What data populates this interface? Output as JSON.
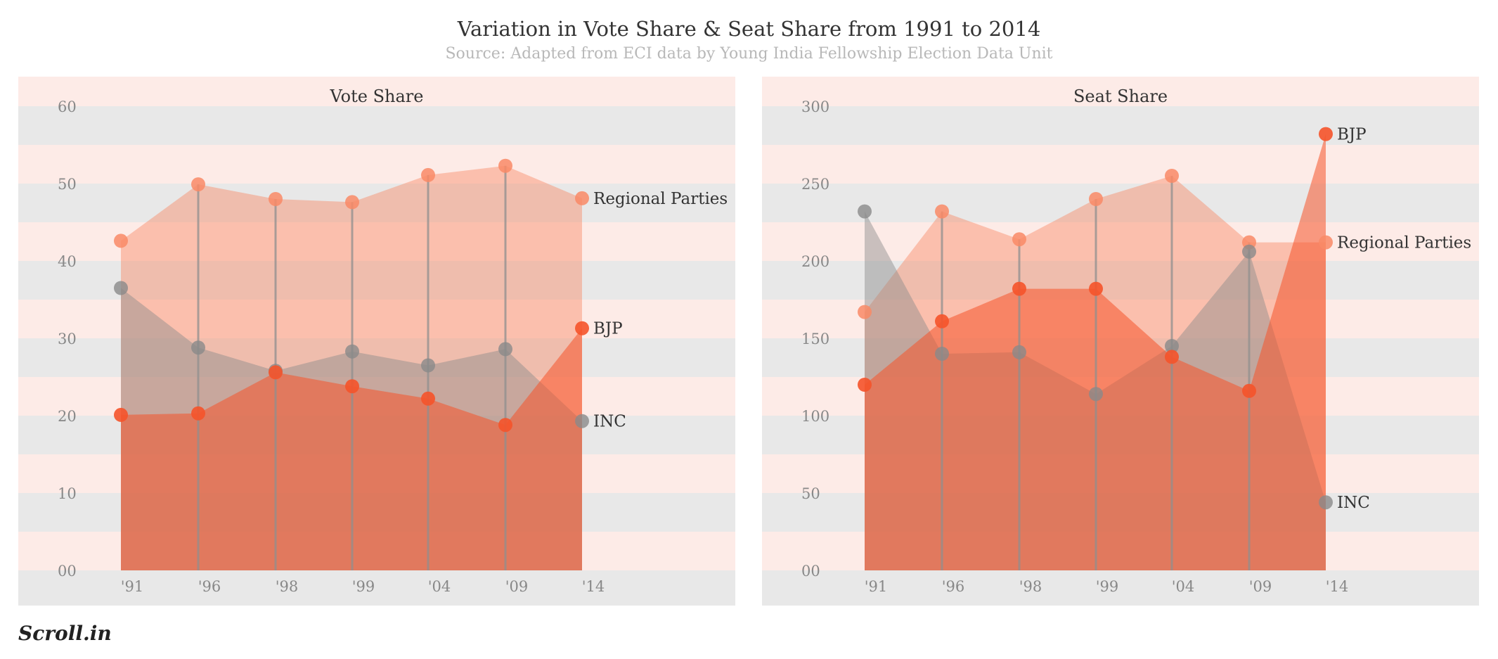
{
  "title": "Variation in Vote Share & Seat Share from 1991 to 2014",
  "subtitle": "Source: Adapted from ECI data by Young India Fellowship Election Data Unit",
  "logo": "Scroll.in",
  "colors": {
    "band_pink": "#fdebe7",
    "band_gray": "#e8e8e8",
    "inc": "#8a8a8a",
    "bjp": "#f5532a",
    "regional": "#f98a66",
    "stem": "#8f8f8f"
  },
  "chart_data": [
    {
      "type": "area",
      "title": "Vote Share",
      "categories": [
        "'91",
        "'96",
        "'98",
        "'99",
        "'04",
        "'09",
        "'14"
      ],
      "yticks": [
        "00",
        "10",
        "20",
        "30",
        "40",
        "50",
        "60"
      ],
      "ylim": [
        0,
        60
      ],
      "grid": "alternating bands",
      "series": [
        {
          "name": "Regional Parties",
          "values": [
            42.6,
            49.9,
            48.0,
            47.6,
            51.1,
            52.3,
            48.1
          ]
        },
        {
          "name": "INC",
          "values": [
            36.5,
            28.8,
            25.8,
            28.3,
            26.5,
            28.6,
            19.3
          ]
        },
        {
          "name": "BJP",
          "values": [
            20.1,
            20.3,
            25.6,
            23.8,
            22.2,
            18.8,
            31.3
          ]
        }
      ]
    },
    {
      "type": "area",
      "title": "Seat Share",
      "categories": [
        "'91",
        "'96",
        "'98",
        "'99",
        "'04",
        "'09",
        "'14"
      ],
      "yticks": [
        "00",
        "50",
        "100",
        "150",
        "200",
        "250",
        "300"
      ],
      "ylim": [
        0,
        300
      ],
      "grid": "alternating bands",
      "series": [
        {
          "name": "Regional Parties",
          "values": [
            167,
            232,
            214,
            240,
            255,
            212,
            212
          ]
        },
        {
          "name": "INC",
          "values": [
            232,
            140,
            141,
            114,
            145,
            206,
            44
          ]
        },
        {
          "name": "BJP",
          "values": [
            120,
            161,
            182,
            182,
            138,
            116,
            282
          ]
        }
      ]
    }
  ]
}
